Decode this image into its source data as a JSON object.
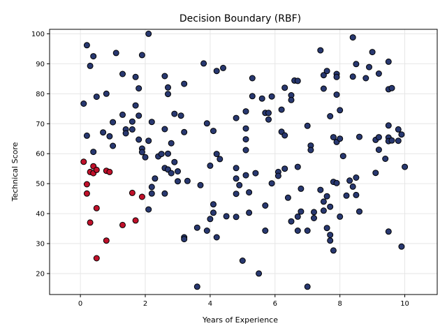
{
  "chart_data": {
    "type": "scatter",
    "title": "Decision Boundary (RBF)",
    "xlabel": "Years of Experience",
    "ylabel": "Technical Score",
    "xlim": [
      -0.95,
      11.0
    ],
    "ylim": [
      13.0,
      101.5
    ],
    "xticks": [
      0,
      2,
      4,
      6,
      8,
      10
    ],
    "yticks": [
      20,
      30,
      40,
      50,
      60,
      70,
      80,
      90,
      100
    ],
    "grid": true,
    "colors": {
      "class_0": "#c0102a",
      "class_1": "#283870",
      "edge": "#000000",
      "grid": "#e6e6e6"
    },
    "series": [
      {
        "class": 1,
        "points": [
          [
            0.1,
            76.7
          ],
          [
            0.2,
            96.2
          ],
          [
            0.2,
            66.0
          ],
          [
            0.3,
            89.3
          ],
          [
            0.4,
            92.5
          ],
          [
            0.4,
            60.6
          ],
          [
            0.5,
            79.0
          ],
          [
            0.8,
            80.0
          ],
          [
            0.7,
            67.1
          ],
          [
            0.9,
            65.8
          ],
          [
            1.0,
            70.5
          ],
          [
            1.0,
            62.6
          ],
          [
            1.1,
            93.6
          ],
          [
            1.3,
            86.6
          ],
          [
            1.3,
            73.0
          ],
          [
            1.4,
            68.1
          ],
          [
            1.4,
            66.8
          ],
          [
            1.6,
            70.7
          ],
          [
            1.6,
            68.1
          ],
          [
            1.7,
            85.6
          ],
          [
            1.7,
            76.1
          ],
          [
            1.8,
            81.8
          ],
          [
            1.8,
            72.7
          ],
          [
            1.8,
            64.7
          ],
          [
            1.9,
            92.9
          ],
          [
            1.9,
            61.7
          ],
          [
            1.9,
            60.5
          ],
          [
            2.0,
            58.8
          ],
          [
            2.1,
            100.0
          ],
          [
            2.1,
            64.3
          ],
          [
            2.1,
            41.4
          ],
          [
            2.2,
            70.6
          ],
          [
            2.2,
            48.9
          ],
          [
            2.2,
            46.7
          ],
          [
            2.3,
            51.7
          ],
          [
            2.4,
            59.1
          ],
          [
            2.5,
            59.9
          ],
          [
            2.6,
            85.9
          ],
          [
            2.6,
            68.2
          ],
          [
            2.6,
            55.2
          ],
          [
            2.6,
            46.7
          ],
          [
            2.7,
            82.1
          ],
          [
            2.7,
            79.9
          ],
          [
            2.7,
            60.0
          ],
          [
            2.7,
            54.7
          ],
          [
            2.8,
            63.5
          ],
          [
            2.8,
            53.5
          ],
          [
            2.9,
            73.3
          ],
          [
            2.9,
            57.2
          ],
          [
            3.0,
            54.1
          ],
          [
            3.0,
            50.8
          ],
          [
            3.1,
            72.7
          ],
          [
            3.2,
            83.3
          ],
          [
            3.2,
            67.2
          ],
          [
            3.2,
            32.1
          ],
          [
            3.2,
            31.5
          ],
          [
            3.3,
            50.9
          ],
          [
            3.6,
            35.3
          ],
          [
            3.6,
            15.6
          ],
          [
            3.7,
            49.5
          ],
          [
            3.8,
            90.1
          ],
          [
            3.9,
            70.1
          ],
          [
            3.9,
            34.3
          ],
          [
            4.0,
            56.0
          ],
          [
            4.0,
            38.2
          ],
          [
            4.1,
            67.6
          ],
          [
            4.1,
            43.1
          ],
          [
            4.1,
            40.3
          ],
          [
            4.2,
            87.6
          ],
          [
            4.2,
            59.9
          ],
          [
            4.2,
            32.1
          ],
          [
            4.3,
            58.2
          ],
          [
            4.4,
            88.6
          ],
          [
            4.5,
            39.1
          ],
          [
            4.8,
            71.9
          ],
          [
            4.8,
            55.2
          ],
          [
            4.8,
            51.7
          ],
          [
            4.8,
            46.6
          ],
          [
            4.8,
            38.9
          ],
          [
            4.9,
            49.5
          ],
          [
            5.0,
            24.3
          ],
          [
            5.1,
            74.1
          ],
          [
            5.1,
            68.4
          ],
          [
            5.1,
            64.8
          ],
          [
            5.1,
            61.2
          ],
          [
            5.1,
            52.8
          ],
          [
            5.2,
            47.1
          ],
          [
            5.2,
            40.3
          ],
          [
            5.3,
            85.2
          ],
          [
            5.3,
            79.2
          ],
          [
            5.4,
            53.5
          ],
          [
            5.5,
            20.0
          ],
          [
            5.6,
            78.4
          ],
          [
            5.7,
            73.6
          ],
          [
            5.7,
            42.7
          ],
          [
            5.7,
            34.3
          ],
          [
            5.8,
            73.6
          ],
          [
            5.8,
            71.4
          ],
          [
            5.9,
            79.1
          ],
          [
            5.9,
            50.1
          ],
          [
            6.1,
            53.9
          ],
          [
            6.1,
            52.6
          ],
          [
            6.2,
            74.7
          ],
          [
            6.2,
            67.3
          ],
          [
            6.3,
            82.0
          ],
          [
            6.3,
            66.1
          ],
          [
            6.3,
            55.0
          ],
          [
            6.4,
            45.3
          ],
          [
            6.5,
            79.5
          ],
          [
            6.5,
            77.9
          ],
          [
            6.5,
            37.4
          ],
          [
            6.6,
            84.4
          ],
          [
            6.7,
            84.3
          ],
          [
            6.7,
            55.6
          ],
          [
            6.7,
            39.0
          ],
          [
            6.7,
            34.3
          ],
          [
            6.8,
            48.3
          ],
          [
            6.8,
            40.7
          ],
          [
            7.0,
            69.3
          ],
          [
            7.0,
            34.3
          ],
          [
            7.0,
            15.6
          ],
          [
            7.1,
            62.7
          ],
          [
            7.1,
            61.2
          ],
          [
            7.2,
            40.5
          ],
          [
            7.2,
            38.5
          ],
          [
            7.4,
            94.5
          ],
          [
            7.4,
            47.9
          ],
          [
            7.5,
            86.2
          ],
          [
            7.5,
            81.7
          ],
          [
            7.5,
            44.0
          ],
          [
            7.5,
            41.0
          ],
          [
            7.6,
            87.6
          ],
          [
            7.6,
            45.8
          ],
          [
            7.6,
            35.2
          ],
          [
            7.7,
            72.5
          ],
          [
            7.7,
            42.3
          ],
          [
            7.7,
            32.9
          ],
          [
            7.7,
            31.0
          ],
          [
            7.8,
            65.5
          ],
          [
            7.8,
            50.6
          ],
          [
            7.8,
            27.7
          ],
          [
            7.9,
            86.6
          ],
          [
            7.9,
            85.6
          ],
          [
            7.9,
            79.7
          ],
          [
            7.9,
            63.9
          ],
          [
            7.9,
            50.2
          ],
          [
            8.0,
            74.5
          ],
          [
            8.0,
            65.0
          ],
          [
            8.0,
            39.0
          ],
          [
            8.1,
            59.2
          ],
          [
            8.2,
            46.0
          ],
          [
            8.3,
            51.0
          ],
          [
            8.4,
            98.8
          ],
          [
            8.4,
            85.7
          ],
          [
            8.4,
            49.0
          ],
          [
            8.5,
            89.9
          ],
          [
            8.5,
            52.0
          ],
          [
            8.5,
            46.2
          ],
          [
            8.6,
            65.6
          ],
          [
            8.6,
            40.7
          ],
          [
            8.8,
            85.2
          ],
          [
            8.9,
            88.9
          ],
          [
            9.0,
            93.9
          ],
          [
            9.1,
            64.6
          ],
          [
            9.1,
            53.6
          ],
          [
            9.2,
            86.7
          ],
          [
            9.2,
            65.5
          ],
          [
            9.2,
            61.3
          ],
          [
            9.4,
            58.3
          ],
          [
            9.5,
            90.7
          ],
          [
            9.5,
            81.5
          ],
          [
            9.5,
            69.4
          ],
          [
            9.5,
            65.4
          ],
          [
            9.5,
            64.2
          ],
          [
            9.5,
            34.0
          ],
          [
            9.6,
            81.9
          ],
          [
            9.6,
            64.4
          ],
          [
            9.8,
            68.1
          ],
          [
            9.8,
            64.3
          ],
          [
            9.9,
            66.4
          ],
          [
            9.9,
            29.0
          ],
          [
            10.0,
            55.6
          ]
        ]
      },
      {
        "class": 0,
        "points": [
          [
            0.1,
            57.3
          ],
          [
            0.2,
            49.8
          ],
          [
            0.2,
            46.7
          ],
          [
            0.3,
            53.9
          ],
          [
            0.3,
            37.0
          ],
          [
            0.4,
            55.8
          ],
          [
            0.4,
            53.5
          ],
          [
            0.5,
            54.6
          ],
          [
            0.5,
            41.8
          ],
          [
            0.5,
            25.1
          ],
          [
            0.8,
            54.3
          ],
          [
            0.8,
            31.0
          ],
          [
            0.9,
            53.9
          ],
          [
            1.3,
            36.2
          ],
          [
            1.6,
            46.9
          ],
          [
            1.7,
            37.7
          ],
          [
            1.9,
            45.6
          ]
        ]
      }
    ]
  }
}
